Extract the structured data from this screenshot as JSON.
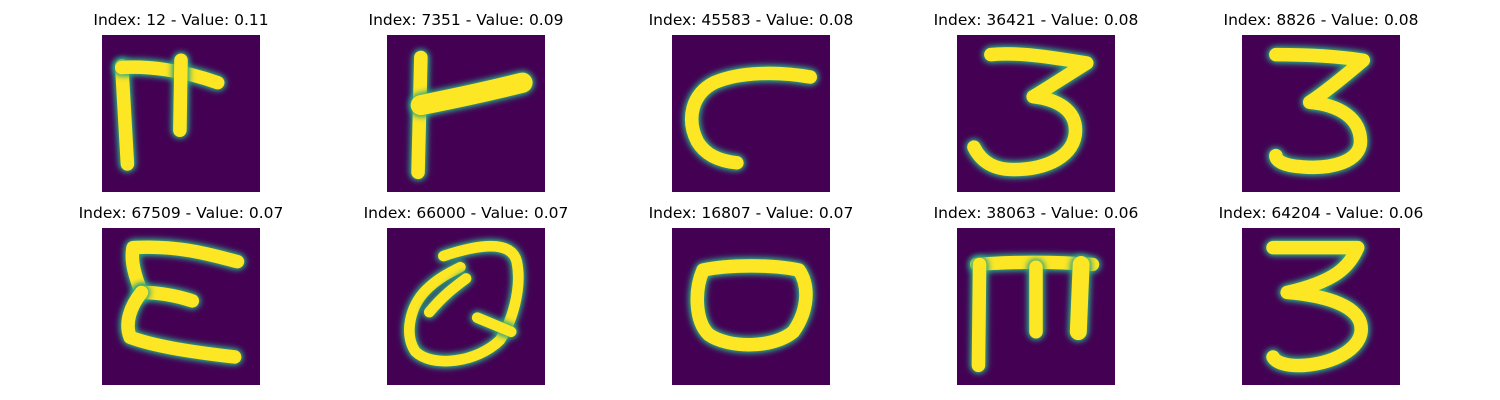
{
  "colormap": {
    "name": "viridis",
    "background": "#440154",
    "edge": "#21918c",
    "stroke": "#fde725"
  },
  "panels": [
    {
      "title": "Index: 12 - Value: 0.11",
      "glyph": "tick-letter-icon"
    },
    {
      "title": "Index: 7351 - Value: 0.09",
      "glyph": "letter-r-icon"
    },
    {
      "title": "Index: 45583 - Value: 0.08",
      "glyph": "letter-c-icon"
    },
    {
      "title": "Index: 36421 - Value: 0.08",
      "glyph": "digit-3-icon"
    },
    {
      "title": "Index: 8826 - Value: 0.08",
      "glyph": "digit-3-icon"
    },
    {
      "title": "Index: 67509 - Value: 0.07",
      "glyph": "letter-e-icon"
    },
    {
      "title": "Index: 66000 - Value: 0.07",
      "glyph": "letter-q-icon"
    },
    {
      "title": "Index: 16807 - Value: 0.07",
      "glyph": "letter-o-icon"
    },
    {
      "title": "Index: 38063 - Value: 0.06",
      "glyph": "letter-m-icon"
    },
    {
      "title": "Index: 64204 - Value: 0.06",
      "glyph": "digit-3-icon"
    }
  ]
}
